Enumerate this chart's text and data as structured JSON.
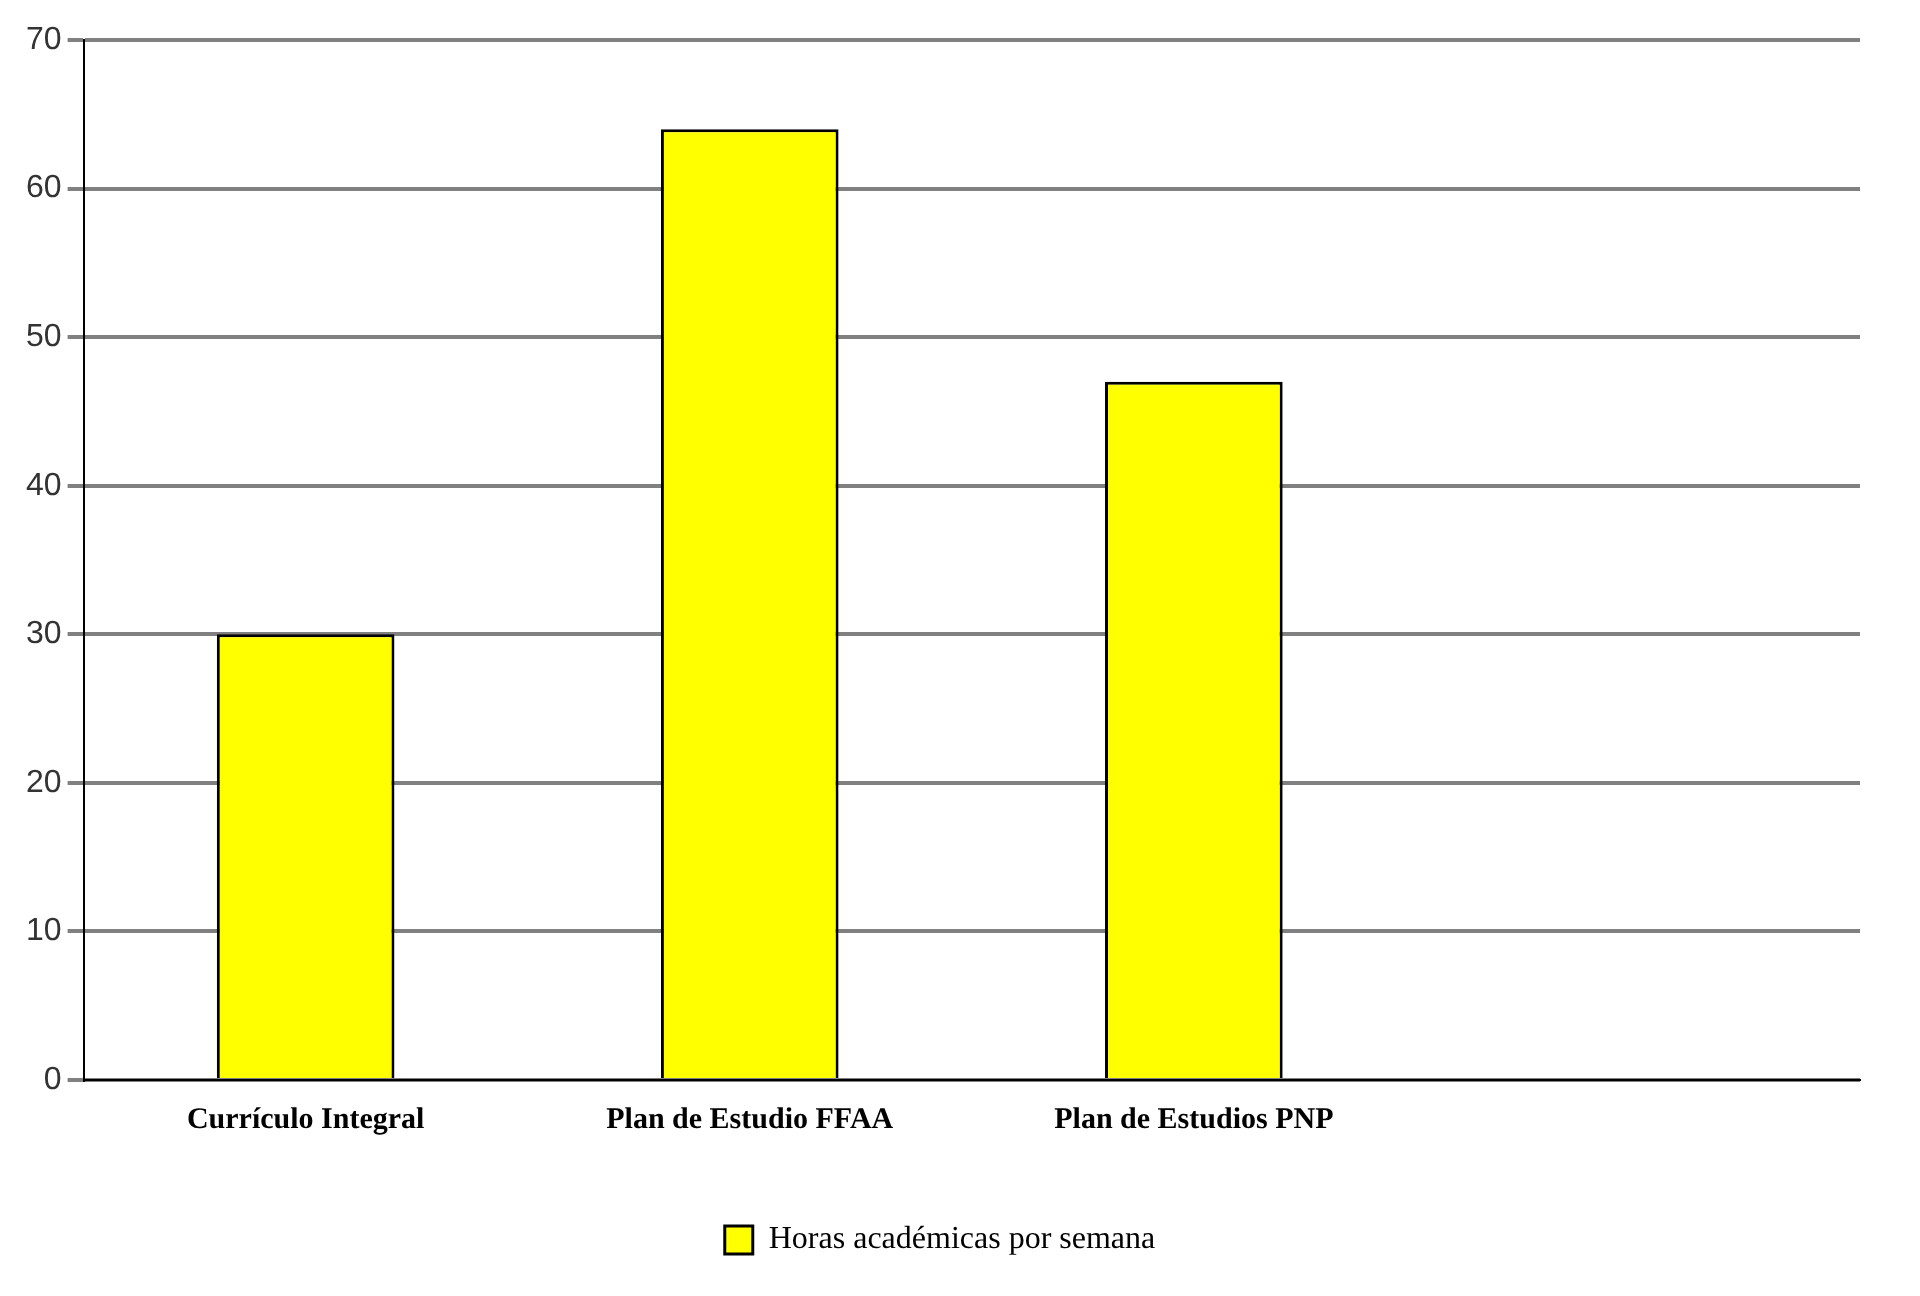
{
  "chart_data": {
    "type": "bar",
    "categories": [
      "Currículo Integral",
      "Plan de Estudio FFAA",
      "Plan de Estudios PNP",
      null
    ],
    "series": [
      {
        "name": "Horas académicas por semana",
        "color": "#ffff00",
        "values": [
          30,
          64,
          47,
          null
        ]
      }
    ],
    "ylim": [
      0,
      70
    ],
    "yticks": [
      0,
      10,
      20,
      30,
      40,
      50,
      60,
      70
    ],
    "grid": "y",
    "legend": "bottom"
  }
}
